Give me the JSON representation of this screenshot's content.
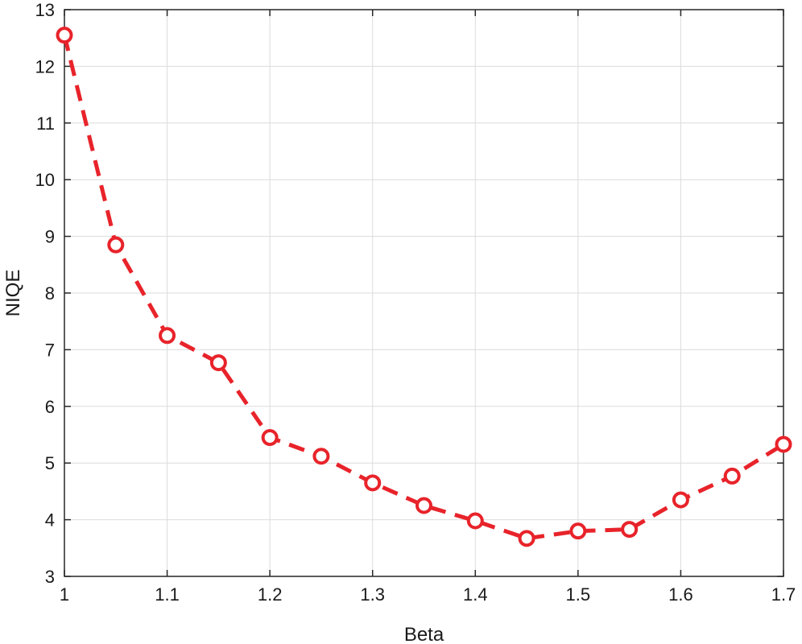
{
  "chart_data": {
    "type": "line",
    "title": "",
    "xlabel": "Beta",
    "ylabel": "NIQE",
    "xlim": [
      1,
      1.7
    ],
    "ylim": [
      3,
      13
    ],
    "xticks": [
      "1",
      "1.1",
      "1.2",
      "1.3",
      "1.4",
      "1.5",
      "1.6",
      "1.7"
    ],
    "yticks": [
      "3",
      "4",
      "5",
      "6",
      "7",
      "8",
      "9",
      "10",
      "11",
      "12",
      "13"
    ],
    "grid": true,
    "series": [
      {
        "color": "#e8232a",
        "line_style": "dashed",
        "marker": "circle",
        "x": [
          1.0,
          1.05,
          1.1,
          1.15,
          1.2,
          1.25,
          1.3,
          1.35,
          1.4,
          1.45,
          1.5,
          1.55,
          1.6,
          1.65,
          1.7
        ],
        "y": [
          12.55,
          8.85,
          7.25,
          6.77,
          5.45,
          5.12,
          4.65,
          4.25,
          3.98,
          3.67,
          3.8,
          3.83,
          4.35,
          4.77,
          5.33
        ]
      }
    ]
  }
}
